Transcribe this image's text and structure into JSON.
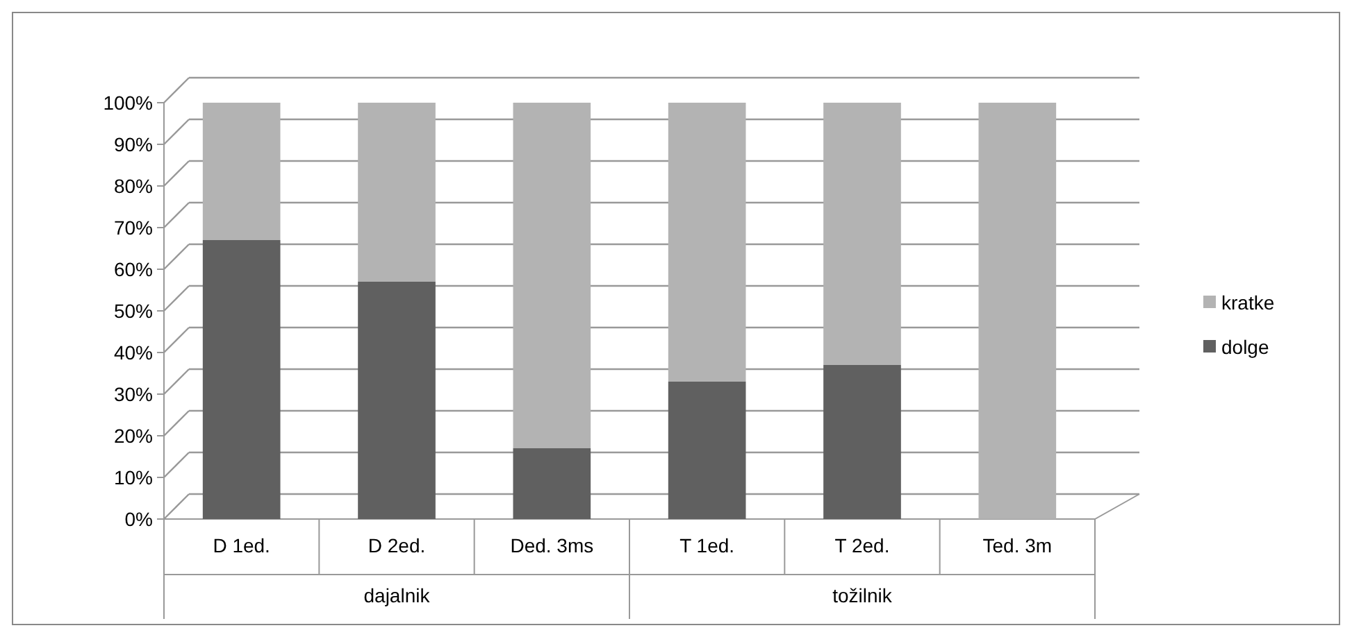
{
  "chart_data": {
    "type": "bar",
    "stacked": true,
    "categories": [
      "D 1ed.",
      "D 2ed.",
      "Ded. 3ms",
      "T 1ed.",
      "T 2ed.",
      "Ted. 3m"
    ],
    "series": [
      {
        "name": "dolge",
        "color": "#606060",
        "values": [
          67,
          57,
          17,
          33,
          37,
          0
        ]
      },
      {
        "name": "kratke",
        "color": "#b3b3b3",
        "values": [
          33,
          43,
          83,
          67,
          63,
          100
        ]
      }
    ],
    "ylim": [
      0,
      100
    ],
    "yticks": [
      {
        "value": 0,
        "label": "0%"
      },
      {
        "value": 10,
        "label": "10%"
      },
      {
        "value": 20,
        "label": "20%"
      },
      {
        "value": 30,
        "label": "30%"
      },
      {
        "value": 40,
        "label": "40%"
      },
      {
        "value": 50,
        "label": "50%"
      },
      {
        "value": 60,
        "label": "60%"
      },
      {
        "value": 70,
        "label": "70%"
      },
      {
        "value": 80,
        "label": "80%"
      },
      {
        "value": 90,
        "label": "90%"
      },
      {
        "value": 100,
        "label": "100%"
      }
    ],
    "grid": "y",
    "legend": "right",
    "annotations": [
      "dajalnik",
      "tožilnik"
    ]
  }
}
